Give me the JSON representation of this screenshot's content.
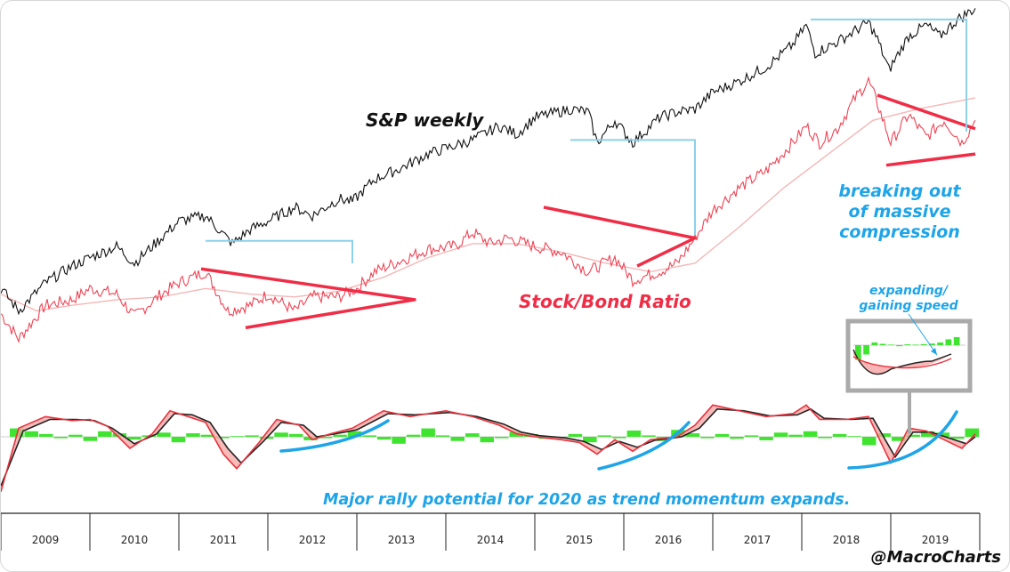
{
  "chart_data": {
    "type": "line",
    "x_ticks": [
      "2009",
      "2010",
      "2011",
      "2012",
      "2013",
      "2014",
      "2015",
      "2016",
      "2017",
      "2018",
      "2019"
    ],
    "xlim": [
      2009.0,
      2020.0
    ],
    "grid": false,
    "legend": "none",
    "series": [
      {
        "id": "spx",
        "values": [
          [
            2009.0,
            0.18
          ],
          [
            2009.2,
            0.1
          ],
          [
            2009.5,
            0.2
          ],
          [
            2009.8,
            0.26
          ],
          [
            2010.0,
            0.29
          ],
          [
            2010.3,
            0.33
          ],
          [
            2010.5,
            0.27
          ],
          [
            2010.8,
            0.36
          ],
          [
            2011.0,
            0.42
          ],
          [
            2011.3,
            0.44
          ],
          [
            2011.6,
            0.34
          ],
          [
            2011.8,
            0.39
          ],
          [
            2012.0,
            0.42
          ],
          [
            2012.3,
            0.47
          ],
          [
            2012.5,
            0.44
          ],
          [
            2012.8,
            0.5
          ],
          [
            2012.95,
            0.49
          ],
          [
            2013.2,
            0.57
          ],
          [
            2013.5,
            0.61
          ],
          [
            2013.8,
            0.66
          ],
          [
            2014.0,
            0.68
          ],
          [
            2014.3,
            0.71
          ],
          [
            2014.6,
            0.76
          ],
          [
            2014.8,
            0.73
          ],
          [
            2015.0,
            0.79
          ],
          [
            2015.4,
            0.82
          ],
          [
            2015.6,
            0.81
          ],
          [
            2015.7,
            0.7
          ],
          [
            2015.9,
            0.78
          ],
          [
            2016.1,
            0.7
          ],
          [
            2016.4,
            0.79
          ],
          [
            2016.6,
            0.81
          ],
          [
            2016.8,
            0.82
          ],
          [
            2017.0,
            0.88
          ],
          [
            2017.3,
            0.92
          ],
          [
            2017.6,
            0.97
          ],
          [
            2017.9,
            1.05
          ],
          [
            2018.05,
            1.12
          ],
          [
            2018.15,
            1.02
          ],
          [
            2018.4,
            1.06
          ],
          [
            2018.6,
            1.1
          ],
          [
            2018.75,
            1.13
          ],
          [
            2018.85,
            1.07
          ],
          [
            2018.98,
            0.96
          ],
          [
            2019.2,
            1.08
          ],
          [
            2019.4,
            1.12
          ],
          [
            2019.55,
            1.08
          ],
          [
            2019.75,
            1.14
          ],
          [
            2019.95,
            1.18
          ]
        ]
      },
      {
        "id": "stock_bond_ratio",
        "values": [
          [
            2009.0,
            0.09
          ],
          [
            2009.2,
            0.0
          ],
          [
            2009.5,
            0.12
          ],
          [
            2009.8,
            0.14
          ],
          [
            2010.0,
            0.18
          ],
          [
            2010.3,
            0.16
          ],
          [
            2010.5,
            0.08
          ],
          [
            2010.8,
            0.16
          ],
          [
            2011.0,
            0.2
          ],
          [
            2011.3,
            0.24
          ],
          [
            2011.55,
            0.1
          ],
          [
            2011.8,
            0.12
          ],
          [
            2012.0,
            0.16
          ],
          [
            2012.3,
            0.1
          ],
          [
            2012.5,
            0.15
          ],
          [
            2012.8,
            0.15
          ],
          [
            2013.0,
            0.18
          ],
          [
            2013.2,
            0.24
          ],
          [
            2013.5,
            0.28
          ],
          [
            2013.8,
            0.32
          ],
          [
            2014.1,
            0.33
          ],
          [
            2014.3,
            0.38
          ],
          [
            2014.5,
            0.34
          ],
          [
            2014.7,
            0.36
          ],
          [
            2015.0,
            0.33
          ],
          [
            2015.3,
            0.31
          ],
          [
            2015.6,
            0.24
          ],
          [
            2015.9,
            0.29
          ],
          [
            2016.1,
            0.21
          ],
          [
            2016.4,
            0.24
          ],
          [
            2016.6,
            0.27
          ],
          [
            2016.8,
            0.36
          ],
          [
            2017.0,
            0.46
          ],
          [
            2017.3,
            0.54
          ],
          [
            2017.6,
            0.6
          ],
          [
            2017.9,
            0.7
          ],
          [
            2018.05,
            0.76
          ],
          [
            2018.2,
            0.7
          ],
          [
            2018.4,
            0.75
          ],
          [
            2018.6,
            0.86
          ],
          [
            2018.75,
            0.92
          ],
          [
            2018.85,
            0.84
          ],
          [
            2019.0,
            0.7
          ],
          [
            2019.2,
            0.8
          ],
          [
            2019.4,
            0.72
          ],
          [
            2019.6,
            0.78
          ],
          [
            2019.8,
            0.7
          ],
          [
            2019.95,
            0.78
          ]
        ]
      },
      {
        "id": "ratio_moving_average",
        "values": [
          [
            2009.0,
            0.16
          ],
          [
            2009.4,
            0.1
          ],
          [
            2009.8,
            0.12
          ],
          [
            2010.3,
            0.14
          ],
          [
            2010.8,
            0.15
          ],
          [
            2011.3,
            0.18
          ],
          [
            2011.8,
            0.16
          ],
          [
            2012.3,
            0.15
          ],
          [
            2012.8,
            0.17
          ],
          [
            2013.3,
            0.22
          ],
          [
            2013.8,
            0.29
          ],
          [
            2014.3,
            0.34
          ],
          [
            2014.8,
            0.34
          ],
          [
            2015.3,
            0.31
          ],
          [
            2015.8,
            0.27
          ],
          [
            2016.3,
            0.24
          ],
          [
            2016.8,
            0.27
          ],
          [
            2017.3,
            0.4
          ],
          [
            2017.8,
            0.54
          ],
          [
            2018.3,
            0.66
          ],
          [
            2018.8,
            0.78
          ],
          [
            2019.3,
            0.82
          ],
          [
            2019.95,
            0.86
          ]
        ]
      },
      {
        "id": "momentum_fast",
        "values": [
          [
            2009.0,
            -0.95
          ],
          [
            2009.2,
            0.15
          ],
          [
            2009.5,
            0.35
          ],
          [
            2009.8,
            0.28
          ],
          [
            2010.0,
            0.3
          ],
          [
            2010.2,
            0.18
          ],
          [
            2010.45,
            -0.2
          ],
          [
            2010.7,
            0.05
          ],
          [
            2010.9,
            0.45
          ],
          [
            2011.1,
            0.35
          ],
          [
            2011.3,
            0.25
          ],
          [
            2011.5,
            -0.3
          ],
          [
            2011.65,
            -0.55
          ],
          [
            2011.9,
            -0.1
          ],
          [
            2012.1,
            0.3
          ],
          [
            2012.35,
            0.2
          ],
          [
            2012.5,
            -0.05
          ],
          [
            2012.7,
            0.05
          ],
          [
            2012.95,
            0.15
          ],
          [
            2013.3,
            0.45
          ],
          [
            2013.6,
            0.35
          ],
          [
            2013.8,
            0.4
          ],
          [
            2014.0,
            0.45
          ],
          [
            2014.3,
            0.35
          ],
          [
            2014.6,
            0.2
          ],
          [
            2014.8,
            0.05
          ],
          [
            2015.0,
            0.0
          ],
          [
            2015.3,
            -0.05
          ],
          [
            2015.5,
            -0.1
          ],
          [
            2015.7,
            -0.3
          ],
          [
            2015.9,
            -0.05
          ],
          [
            2016.1,
            -0.25
          ],
          [
            2016.3,
            -0.05
          ],
          [
            2016.6,
            0.0
          ],
          [
            2016.8,
            0.2
          ],
          [
            2017.0,
            0.55
          ],
          [
            2017.3,
            0.45
          ],
          [
            2017.6,
            0.35
          ],
          [
            2017.9,
            0.4
          ],
          [
            2018.05,
            0.55
          ],
          [
            2018.2,
            0.3
          ],
          [
            2018.5,
            0.3
          ],
          [
            2018.75,
            0.35
          ],
          [
            2019.0,
            -0.45
          ],
          [
            2019.2,
            0.15
          ],
          [
            2019.4,
            0.1
          ],
          [
            2019.6,
            -0.05
          ],
          [
            2019.8,
            -0.2
          ],
          [
            2019.95,
            0.05
          ]
        ]
      },
      {
        "id": "momentum_slow",
        "values": [
          [
            2009.0,
            -0.85
          ],
          [
            2009.25,
            0.1
          ],
          [
            2009.55,
            0.3
          ],
          [
            2009.85,
            0.3
          ],
          [
            2010.05,
            0.28
          ],
          [
            2010.25,
            0.15
          ],
          [
            2010.5,
            -0.12
          ],
          [
            2010.75,
            0.05
          ],
          [
            2010.95,
            0.4
          ],
          [
            2011.15,
            0.38
          ],
          [
            2011.35,
            0.25
          ],
          [
            2011.55,
            -0.2
          ],
          [
            2011.7,
            -0.45
          ],
          [
            2011.95,
            -0.08
          ],
          [
            2012.15,
            0.25
          ],
          [
            2012.4,
            0.2
          ],
          [
            2012.55,
            0.0
          ],
          [
            2012.75,
            0.05
          ],
          [
            2013.0,
            0.12
          ],
          [
            2013.35,
            0.4
          ],
          [
            2013.65,
            0.38
          ],
          [
            2013.85,
            0.4
          ],
          [
            2014.05,
            0.42
          ],
          [
            2014.35,
            0.35
          ],
          [
            2014.65,
            0.22
          ],
          [
            2014.85,
            0.08
          ],
          [
            2015.05,
            0.02
          ],
          [
            2015.35,
            -0.02
          ],
          [
            2015.55,
            -0.08
          ],
          [
            2015.75,
            -0.22
          ],
          [
            2015.95,
            -0.08
          ],
          [
            2016.15,
            -0.18
          ],
          [
            2016.35,
            -0.06
          ],
          [
            2016.65,
            0.0
          ],
          [
            2016.85,
            0.15
          ],
          [
            2017.05,
            0.48
          ],
          [
            2017.35,
            0.45
          ],
          [
            2017.65,
            0.36
          ],
          [
            2017.95,
            0.38
          ],
          [
            2018.1,
            0.48
          ],
          [
            2018.25,
            0.32
          ],
          [
            2018.55,
            0.3
          ],
          [
            2018.8,
            0.32
          ],
          [
            2019.05,
            -0.35
          ],
          [
            2019.25,
            0.08
          ],
          [
            2019.45,
            0.08
          ],
          [
            2019.65,
            -0.02
          ],
          [
            2019.85,
            -0.12
          ],
          [
            2019.95,
            0.0
          ]
        ]
      }
    ],
    "momentum_histogram": [
      0.12,
      0.08,
      0.04,
      -0.02,
      0.03,
      -0.06,
      0.08,
      0.05,
      -0.04,
      0.02,
      0.06,
      -0.08,
      0.05,
      0.03,
      -0.02,
      0.01,
      0.02,
      -0.03,
      0.06,
      0.04,
      -0.05,
      -0.02,
      0.03,
      0.08,
      0.02,
      -0.04,
      -0.1,
      0.03,
      0.12,
      0.02,
      -0.06,
      0.05,
      -0.08,
      -0.02,
      0.07,
      0.04,
      -0.03,
      -0.01,
      0.04,
      -0.08,
      0.02,
      -0.02,
      0.09,
      0.02,
      -0.06,
      0.1,
      0.05,
      -0.02,
      0.04,
      -0.03,
      0.02,
      -0.05,
      0.06,
      0.03,
      0.08,
      -0.02,
      0.04,
      0.01,
      -0.12,
      0.05,
      -0.06,
      0.03,
      0.08,
      0.06,
      -0.03,
      0.12
    ],
    "inset_histogram": [
      -0.55,
      -0.35,
      0.1,
      0.05,
      0.02,
      -0.04,
      0.03,
      0.02,
      0.04,
      0.06,
      0.1,
      0.22,
      0.3
    ],
    "annotations": {
      "spx_label": "S&P weekly",
      "ratio_label": "Stock/Bond Ratio",
      "breakout_line1": "breaking out",
      "breakout_line2": "of massive",
      "breakout_line3": "compression",
      "expanding_line1": "expanding/",
      "expanding_line2": "gaining speed",
      "bottom_note": "Major rally potential for 2020 as trend momentum expands.",
      "watermark": "@MacroCharts"
    },
    "colors": {
      "spx": "#111111",
      "ratio": "#ee4455",
      "ratio_ma": "#f5b6b6",
      "triangle": "#f02d46",
      "breakout_box": "#8dd0ec",
      "momentum_fast": "#e8323c",
      "momentum_slow": "#222222",
      "momentum_fill": "#f7a3a3",
      "histogram": "#3fe42f",
      "blue_annotation": "#1ea4e8",
      "inset_frame": "#aaaaaa"
    }
  }
}
